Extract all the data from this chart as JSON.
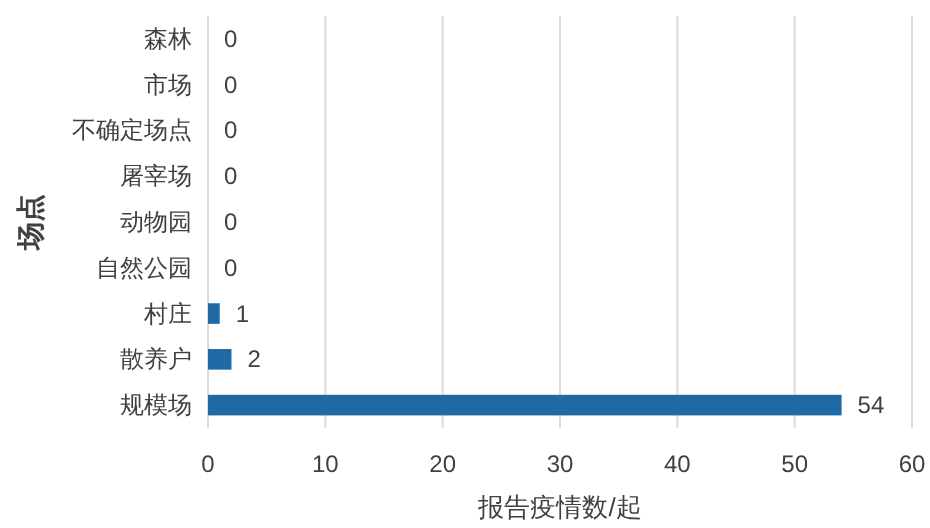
{
  "chart_data": {
    "type": "bar",
    "orientation": "horizontal",
    "categories": [
      "森林",
      "市场",
      "不确定场点",
      "屠宰场",
      "动物园",
      "自然公园",
      "村庄",
      "散养户",
      "规模场"
    ],
    "values": [
      0,
      0,
      0,
      0,
      0,
      0,
      1,
      2,
      54
    ],
    "color": "#1f6aa5",
    "xlabel": "报告疫情数/起",
    "ylabel": "场点",
    "xlim": [
      0,
      60
    ],
    "xticks": [
      0,
      10,
      20,
      30,
      40,
      50,
      60
    ],
    "grid": "x",
    "data_labels": true
  }
}
